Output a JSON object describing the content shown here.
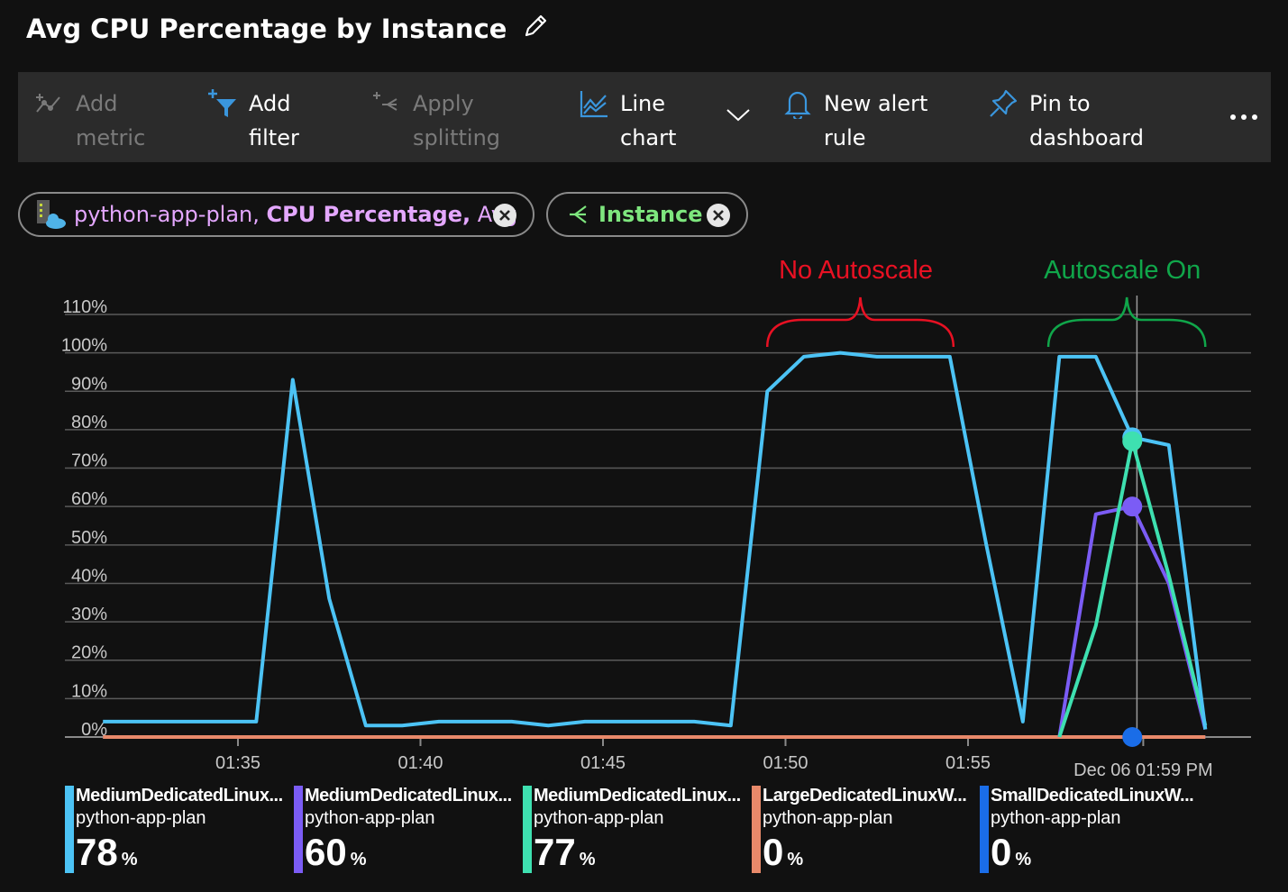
{
  "title": "Avg CPU Percentage by Instance",
  "toolbar": {
    "add_metric": [
      "Add",
      "metric"
    ],
    "add_filter": [
      "Add",
      "filter"
    ],
    "apply_splitting": [
      "Apply",
      "splitting"
    ],
    "line_chart": [
      "Line",
      "chart"
    ],
    "new_alert_rule": [
      "New alert",
      "rule"
    ],
    "pin_to_dashboard": [
      "Pin to",
      "dashboard"
    ]
  },
  "pills": {
    "metric": {
      "resource": "python-app-plan,",
      "metric": "CPU Percentage,",
      "agg": "Avg"
    },
    "split": {
      "label": "Instance"
    }
  },
  "colors": {
    "series1": "#4cc3f5",
    "series2": "#7b5cf5",
    "series3": "#3ee0b0",
    "series4": "#e8896a",
    "series5": "#1a6de8",
    "annotation_red": "#e81123",
    "annotation_green": "#10a64a"
  },
  "chart_data": {
    "type": "line",
    "ylim": [
      0,
      110
    ],
    "y_ticks": [
      "0%",
      "10%",
      "20%",
      "30%",
      "40%",
      "50%",
      "60%",
      "70%",
      "80%",
      "90%",
      "100%",
      "110%"
    ],
    "x_tick_labels": [
      "01:35",
      "01:40",
      "01:45",
      "01:50",
      "01:55"
    ],
    "x_tick_minutes": [
      35,
      40,
      45,
      50,
      55
    ],
    "cursor_label": "Dec 06 01:59 PM",
    "cursor_minute": 59.8,
    "annotations": [
      {
        "text": "No Autoscale",
        "x_from": 49.5,
        "x_to": 54.6,
        "color": "red"
      },
      {
        "text": "Autoscale On",
        "x_from": 57.2,
        "x_to": 61.5,
        "color": "green"
      }
    ],
    "series": [
      {
        "x": [
          31.3,
          35.5,
          36.5,
          37.5,
          38.5,
          39.5,
          40.5,
          41.5,
          42.5,
          43.5,
          44.5,
          45.5,
          46.5,
          47.5,
          48.5,
          49.5,
          50.5,
          51.5,
          52.5,
          53.5,
          54.5,
          55.5,
          56.5,
          57.5,
          58.5,
          59.5,
          60.5,
          61.5
        ],
        "values": [
          4,
          4,
          93,
          36,
          3,
          3,
          4,
          4,
          4,
          3,
          4,
          4,
          4,
          4,
          3,
          90,
          99,
          100,
          99,
          99,
          99,
          50,
          4,
          99,
          99,
          78,
          76,
          2
        ]
      },
      {
        "x": [
          57.5,
          58.5,
          59,
          59.5,
          60.5,
          61.5
        ],
        "values": [
          0,
          58,
          59,
          60,
          40,
          2
        ]
      },
      {
        "x": [
          57.5,
          58.5,
          59.5,
          60.5,
          61.5
        ],
        "values": [
          0,
          29,
          77,
          42,
          3
        ]
      },
      {
        "x": [
          31.3,
          61.5
        ],
        "values": [
          0,
          0
        ]
      },
      {
        "x": [
          31.3,
          61.5
        ],
        "values": [
          0,
          0
        ]
      }
    ],
    "markers": [
      {
        "series": 0,
        "x": 59.5,
        "value": 78
      },
      {
        "series": 2,
        "x": 59.5,
        "value": 77
      },
      {
        "series": 1,
        "x": 59.5,
        "value": 60
      },
      {
        "series": 4,
        "x": 59.5,
        "value": 0
      }
    ]
  },
  "legend": [
    {
      "name": "MediumDedicatedLinux...",
      "sub": "python-app-plan",
      "value": "78",
      "unit": "%"
    },
    {
      "name": "MediumDedicatedLinux...",
      "sub": "python-app-plan",
      "value": "60",
      "unit": "%"
    },
    {
      "name": "MediumDedicatedLinux...",
      "sub": "python-app-plan",
      "value": "77",
      "unit": "%"
    },
    {
      "name": "LargeDedicatedLinuxW...",
      "sub": "python-app-plan",
      "value": "0",
      "unit": "%"
    },
    {
      "name": "SmallDedicatedLinuxW...",
      "sub": "python-app-plan",
      "value": "0",
      "unit": "%"
    }
  ]
}
